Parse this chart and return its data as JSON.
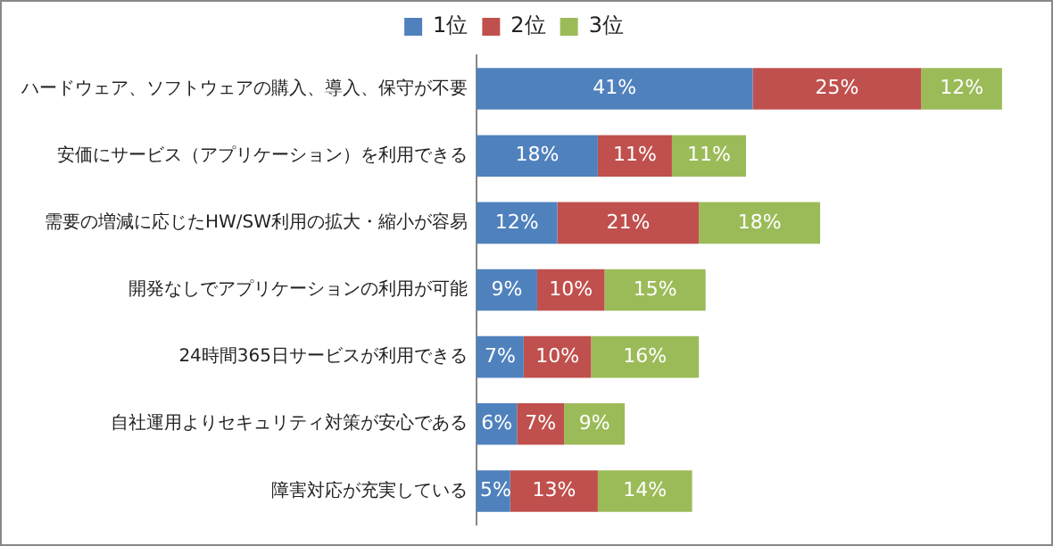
{
  "chart_data": {
    "type": "bar",
    "orientation": "horizontal",
    "stacked": true,
    "legend": "top",
    "grid": false,
    "tick_labels": "y",
    "categories": [
      "ハードウェア、ソフトウェアの購入、導入、保守が不要",
      "安価にサービス（アプリケーション）を利用できる",
      "需要の増減に応じたHW/SW利用の拡大・縮小が容易",
      "開発なしでアプリケーションの利用が可能",
      "24時間365日サービスが利用できる",
      "自社運用よりセキュリティ対策が安心である",
      "障害対応が充実している"
    ],
    "series": [
      {
        "name": "1位",
        "color": "#4f81bd",
        "values": [
          41,
          18,
          12,
          9,
          7,
          6,
          5
        ],
        "value_labels": [
          "41%",
          "18%",
          "12%",
          "9%",
          "7%",
          "6%",
          "5%"
        ]
      },
      {
        "name": "2位",
        "color": "#c0504d",
        "values": [
          25,
          11,
          21,
          10,
          10,
          7,
          13
        ],
        "value_labels": [
          "25%",
          "11%",
          "21%",
          "10%",
          "10%",
          "7%",
          "13%"
        ]
      },
      {
        "name": "3位",
        "color": "#9bbb59",
        "values": [
          12,
          11,
          18,
          15,
          16,
          9,
          14
        ],
        "value_labels": [
          "12%",
          "11%",
          "18%",
          "15%",
          "16%",
          "9%",
          "14%"
        ]
      }
    ]
  }
}
